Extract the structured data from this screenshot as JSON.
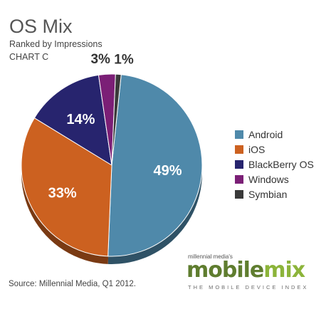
{
  "chart_data": {
    "type": "pie",
    "title": "OS Mix",
    "subtitle": "Ranked by Impressions",
    "chart_label": "CHART C",
    "slices": [
      {
        "label": "Android",
        "value": 49,
        "display": "49%",
        "color": "#4f89aa"
      },
      {
        "label": "iOS",
        "value": 33,
        "display": "33%",
        "color": "#cc6120"
      },
      {
        "label": "BlackBerry OS",
        "value": 14,
        "display": "14%",
        "color": "#27246e"
      },
      {
        "label": "Windows",
        "value": 3,
        "display": "3%",
        "color": "#7b1f76"
      },
      {
        "label": "Symbian",
        "value": 1,
        "display": "1%",
        "color": "#3a3a3a"
      }
    ],
    "legend_position": "right"
  },
  "source": "Source: Millennial Media, Q1 2012.",
  "brand": {
    "small": "millennial media's",
    "word_1": "mobile",
    "word_2": "mix",
    "tagline": "THE MOBILE DEVICE INDEX"
  }
}
